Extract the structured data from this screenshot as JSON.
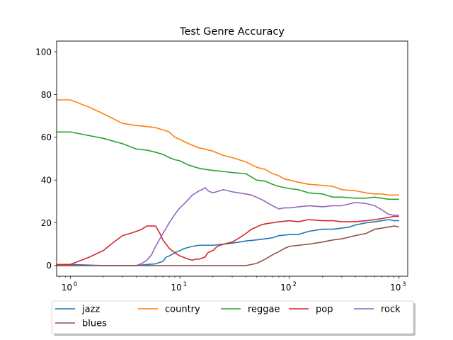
{
  "chart_data": {
    "type": "line",
    "title": "Test Genre Accuracy",
    "xlabel": "",
    "ylabel": "",
    "x_scale": "log",
    "xlim": [
      0.75,
      1200
    ],
    "ylim": [
      -5,
      105
    ],
    "x_ticks": [
      {
        "value": 1,
        "base": "10",
        "exp": "0"
      },
      {
        "value": 10,
        "base": "10",
        "exp": "1"
      },
      {
        "value": 100,
        "base": "10",
        "exp": "2"
      },
      {
        "value": 1000,
        "base": "10",
        "exp": "3"
      }
    ],
    "y_ticks": [
      "0",
      "20",
      "40",
      "60",
      "80",
      "100"
    ],
    "grid": false,
    "legend_position": "bottom",
    "series": [
      {
        "name": "jazz",
        "color": "#1f77b4",
        "points": [
          [
            0.75,
            0.5
          ],
          [
            1,
            0.5
          ],
          [
            2,
            0
          ],
          [
            3,
            0
          ],
          [
            4,
            0
          ],
          [
            5,
            0.5
          ],
          [
            6,
            0.8
          ],
          [
            7,
            2
          ],
          [
            7.5,
            4
          ],
          [
            8,
            4.5
          ],
          [
            9,
            6
          ],
          [
            10,
            7
          ],
          [
            11,
            8
          ],
          [
            13,
            9
          ],
          [
            15,
            9.5
          ],
          [
            20,
            9.5
          ],
          [
            25,
            10
          ],
          [
            30,
            10.5
          ],
          [
            35,
            11
          ],
          [
            40,
            11.5
          ],
          [
            50,
            12
          ],
          [
            60,
            12.5
          ],
          [
            70,
            13
          ],
          [
            80,
            14
          ],
          [
            100,
            14.5
          ],
          [
            120,
            14.5
          ],
          [
            150,
            16
          ],
          [
            200,
            17
          ],
          [
            250,
            17
          ],
          [
            300,
            17.5
          ],
          [
            350,
            18
          ],
          [
            400,
            19
          ],
          [
            500,
            20
          ],
          [
            600,
            20.5
          ],
          [
            700,
            21
          ],
          [
            800,
            21.5
          ],
          [
            900,
            21
          ],
          [
            1000,
            21
          ]
        ]
      },
      {
        "name": "country",
        "color": "#ff7f0e",
        "points": [
          [
            0.75,
            77.5
          ],
          [
            1,
            77.5
          ],
          [
            1.5,
            74
          ],
          [
            2,
            71
          ],
          [
            3,
            66.5
          ],
          [
            4,
            65.5
          ],
          [
            5,
            65
          ],
          [
            6,
            64.5
          ],
          [
            7,
            63.5
          ],
          [
            8,
            62.5
          ],
          [
            9,
            60
          ],
          [
            10,
            59
          ],
          [
            12,
            57
          ],
          [
            15,
            55
          ],
          [
            17,
            54.5
          ],
          [
            20,
            53.5
          ],
          [
            25,
            51.5
          ],
          [
            30,
            50.5
          ],
          [
            40,
            48.5
          ],
          [
            50,
            46
          ],
          [
            60,
            45
          ],
          [
            70,
            43
          ],
          [
            80,
            42
          ],
          [
            90,
            40.5
          ],
          [
            100,
            40
          ],
          [
            120,
            39
          ],
          [
            150,
            38
          ],
          [
            200,
            37.5
          ],
          [
            250,
            37
          ],
          [
            300,
            35.5
          ],
          [
            400,
            35
          ],
          [
            500,
            34
          ],
          [
            600,
            33.5
          ],
          [
            700,
            33.5
          ],
          [
            800,
            33
          ],
          [
            900,
            33
          ],
          [
            1000,
            33
          ]
        ]
      },
      {
        "name": "reggae",
        "color": "#2ca02c",
        "points": [
          [
            0.75,
            62.5
          ],
          [
            1,
            62.5
          ],
          [
            2,
            59.5
          ],
          [
            3,
            57
          ],
          [
            4,
            54.5
          ],
          [
            5,
            54
          ],
          [
            6,
            53
          ],
          [
            7,
            52
          ],
          [
            8,
            50.5
          ],
          [
            9,
            49.5
          ],
          [
            10,
            49
          ],
          [
            12,
            47
          ],
          [
            15,
            45.5
          ],
          [
            17,
            45
          ],
          [
            20,
            44.5
          ],
          [
            25,
            44
          ],
          [
            30,
            43.5
          ],
          [
            40,
            43
          ],
          [
            50,
            40
          ],
          [
            60,
            39.5
          ],
          [
            70,
            38
          ],
          [
            80,
            37
          ],
          [
            100,
            36
          ],
          [
            120,
            35.5
          ],
          [
            150,
            34
          ],
          [
            200,
            33.5
          ],
          [
            250,
            32
          ],
          [
            300,
            32
          ],
          [
            400,
            31.5
          ],
          [
            500,
            31.5
          ],
          [
            600,
            32
          ],
          [
            700,
            31.5
          ],
          [
            800,
            31
          ],
          [
            900,
            31
          ],
          [
            1000,
            31
          ]
        ]
      },
      {
        "name": "pop",
        "color": "#d62728",
        "points": [
          [
            0.75,
            0.5
          ],
          [
            1,
            0.5
          ],
          [
            1.5,
            4
          ],
          [
            2,
            7
          ],
          [
            2.5,
            11
          ],
          [
            3,
            14
          ],
          [
            3.5,
            15
          ],
          [
            4,
            16
          ],
          [
            4.5,
            17
          ],
          [
            5,
            18.5
          ],
          [
            5.5,
            18.5
          ],
          [
            6,
            18.5
          ],
          [
            6.5,
            15.5
          ],
          [
            7,
            12
          ],
          [
            8,
            8
          ],
          [
            9,
            6
          ],
          [
            10,
            4.5
          ],
          [
            12,
            3
          ],
          [
            13,
            2.5
          ],
          [
            14,
            3
          ],
          [
            15,
            3
          ],
          [
            17,
            4
          ],
          [
            18,
            6
          ],
          [
            20,
            7
          ],
          [
            22,
            9
          ],
          [
            25,
            10
          ],
          [
            30,
            11
          ],
          [
            35,
            13
          ],
          [
            40,
            15
          ],
          [
            45,
            17
          ],
          [
            50,
            18
          ],
          [
            55,
            19
          ],
          [
            60,
            19.5
          ],
          [
            70,
            20
          ],
          [
            80,
            20.5
          ],
          [
            100,
            21
          ],
          [
            120,
            20.5
          ],
          [
            150,
            21.5
          ],
          [
            200,
            21
          ],
          [
            250,
            21
          ],
          [
            300,
            20.5
          ],
          [
            400,
            20.5
          ],
          [
            500,
            21
          ],
          [
            600,
            21.5
          ],
          [
            700,
            22
          ],
          [
            800,
            22.5
          ],
          [
            900,
            23
          ],
          [
            1000,
            23
          ]
        ]
      },
      {
        "name": "rock",
        "color": "#9467bd",
        "points": [
          [
            0.75,
            0
          ],
          [
            1,
            0
          ],
          [
            2,
            0
          ],
          [
            3,
            0
          ],
          [
            4,
            0
          ],
          [
            4.5,
            1
          ],
          [
            5,
            2.5
          ],
          [
            5.5,
            5
          ],
          [
            6,
            9
          ],
          [
            7,
            15
          ],
          [
            8,
            20
          ],
          [
            9,
            24
          ],
          [
            10,
            27
          ],
          [
            11,
            29
          ],
          [
            12,
            31
          ],
          [
            13,
            33
          ],
          [
            14,
            34
          ],
          [
            15,
            35
          ],
          [
            16,
            35.5
          ],
          [
            17,
            36.5
          ],
          [
            18,
            35
          ],
          [
            20,
            34
          ],
          [
            25,
            35.5
          ],
          [
            30,
            34.5
          ],
          [
            40,
            33.5
          ],
          [
            45,
            33
          ],
          [
            50,
            32
          ],
          [
            55,
            31
          ],
          [
            60,
            30
          ],
          [
            70,
            28
          ],
          [
            80,
            26.5
          ],
          [
            90,
            27
          ],
          [
            100,
            27
          ],
          [
            150,
            28
          ],
          [
            200,
            27.5
          ],
          [
            250,
            28
          ],
          [
            300,
            28
          ],
          [
            400,
            29.5
          ],
          [
            500,
            29
          ],
          [
            600,
            28
          ],
          [
            700,
            26
          ],
          [
            800,
            24
          ],
          [
            900,
            23.5
          ],
          [
            1000,
            23.5
          ]
        ]
      },
      {
        "name": "blues",
        "color": "#8c564b",
        "points": [
          [
            0.75,
            0
          ],
          [
            1,
            0
          ],
          [
            10,
            0
          ],
          [
            20,
            0
          ],
          [
            30,
            0
          ],
          [
            40,
            0
          ],
          [
            45,
            0.5
          ],
          [
            50,
            1
          ],
          [
            55,
            2
          ],
          [
            60,
            3
          ],
          [
            70,
            5
          ],
          [
            80,
            6.5
          ],
          [
            90,
            8
          ],
          [
            100,
            9
          ],
          [
            150,
            10
          ],
          [
            200,
            11
          ],
          [
            250,
            12
          ],
          [
            300,
            12.5
          ],
          [
            400,
            14
          ],
          [
            500,
            15
          ],
          [
            600,
            17
          ],
          [
            700,
            17.5
          ],
          [
            800,
            18
          ],
          [
            900,
            18.5
          ],
          [
            1000,
            18
          ]
        ]
      }
    ]
  }
}
